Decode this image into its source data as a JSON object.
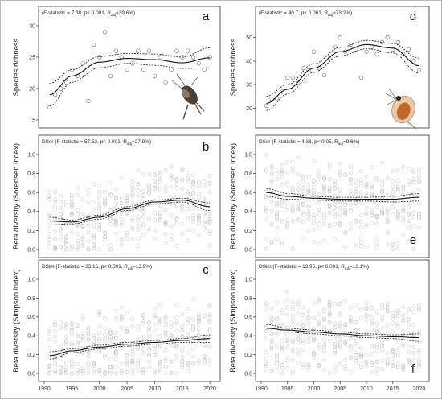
{
  "chart_data": [
    {
      "id": "a",
      "type": "scatter",
      "panel_letter": "a",
      "ylabel": "Species richness",
      "annotation": "(F-statistic = 7.38, p< 0.001, R",
      "annotation_sub": "adj",
      "annotation_tail": "=39.6%)",
      "ylim": [
        15,
        30
      ],
      "yticks": [
        15,
        20,
        25,
        30
      ],
      "xlim": [
        1990,
        2021
      ],
      "xticks": [],
      "icon": "copepod-icon",
      "fit": {
        "x": [
          1991,
          1995,
          2000,
          2005,
          2010,
          2015,
          2020
        ],
        "y": [
          19.0,
          22.0,
          24.2,
          24.8,
          24.6,
          24.1,
          24.9
        ],
        "ci": [
          1.8,
          1.0,
          0.9,
          0.8,
          0.9,
          0.9,
          1.6
        ]
      },
      "points": [
        [
          1991,
          17
        ],
        [
          1992,
          19
        ],
        [
          1993,
          20
        ],
        [
          1994,
          21
        ],
        [
          1995,
          23
        ],
        [
          1996,
          22
        ],
        [
          1997,
          24
        ],
        [
          1998,
          18
        ],
        [
          1999,
          27
        ],
        [
          2000,
          25
        ],
        [
          2001,
          29
        ],
        [
          2002,
          22
        ],
        [
          2003,
          26
        ],
        [
          2004,
          25
        ],
        [
          2005,
          23
        ],
        [
          2006,
          24
        ],
        [
          2007,
          26
        ],
        [
          2008,
          23
        ],
        [
          2009,
          26
        ],
        [
          2010,
          22
        ],
        [
          2011,
          25
        ],
        [
          2012,
          21
        ],
        [
          2013,
          23
        ],
        [
          2014,
          26
        ],
        [
          2015,
          25
        ],
        [
          2016,
          26
        ],
        [
          2017,
          25
        ],
        [
          2018,
          24
        ],
        [
          2019,
          23
        ],
        [
          2020,
          25
        ]
      ]
    },
    {
      "id": "d",
      "type": "scatter",
      "panel_letter": "d",
      "ylabel": "Species richness",
      "annotation": "(F-statistic = 40.7, p< 0.001, R",
      "annotation_sub": "adj",
      "annotation_tail": "=73.2%)",
      "ylim": [
        15,
        55
      ],
      "yticks": [
        20,
        30,
        40,
        50
      ],
      "xlim": [
        1990,
        2021
      ],
      "xticks": [],
      "icon": "daphnia-icon",
      "fit": {
        "x": [
          1991,
          1995,
          2000,
          2005,
          2010,
          2015,
          2020
        ],
        "y": [
          22.0,
          28.0,
          37.0,
          44.0,
          47.0,
          45.5,
          38.0
        ],
        "ci": [
          3.0,
          2.0,
          1.8,
          1.8,
          1.8,
          2.0,
          3.2
        ]
      },
      "points": [
        [
          1991,
          21
        ],
        [
          1992,
          24
        ],
        [
          1993,
          24
        ],
        [
          1994,
          27
        ],
        [
          1995,
          33
        ],
        [
          1996,
          33
        ],
        [
          1997,
          31
        ],
        [
          1998,
          37
        ],
        [
          1999,
          36
        ],
        [
          2000,
          44
        ],
        [
          2001,
          37
        ],
        [
          2002,
          34
        ],
        [
          2003,
          41
        ],
        [
          2004,
          46
        ],
        [
          2005,
          50
        ],
        [
          2006,
          44
        ],
        [
          2007,
          47
        ],
        [
          2008,
          45
        ],
        [
          2009,
          33
        ],
        [
          2010,
          44
        ],
        [
          2011,
          46
        ],
        [
          2012,
          43
        ],
        [
          2013,
          48
        ],
        [
          2014,
          50
        ],
        [
          2015,
          45
        ],
        [
          2016,
          48
        ],
        [
          2017,
          43
        ],
        [
          2018,
          45
        ],
        [
          2019,
          40
        ],
        [
          2020,
          36
        ]
      ]
    },
    {
      "id": "b",
      "type": "scatter",
      "panel_letter": "b",
      "ylabel": "Beta diversity (Sorensen index)",
      "annotation": "DSor (F-statistic = 57.52, p< 0.001, R",
      "annotation_sub": "adj",
      "annotation_tail": "=27.9%)",
      "ylim": [
        0,
        1
      ],
      "yticks": [
        0.0,
        0.2,
        0.4,
        0.6,
        0.8,
        1.0
      ],
      "xlim": [
        1990,
        2021
      ],
      "xticks": [],
      "fit": {
        "x": [
          1991,
          1995,
          2000,
          2005,
          2010,
          2015,
          2020
        ],
        "y": [
          0.3,
          0.29,
          0.34,
          0.43,
          0.5,
          0.52,
          0.45
        ],
        "ci": [
          0.04,
          0.02,
          0.02,
          0.02,
          0.02,
          0.02,
          0.04
        ]
      }
    },
    {
      "id": "e",
      "type": "scatter",
      "panel_letter": "e",
      "ylabel": "Beta diversity (Sorensen index)",
      "annotation": "DSor (F-statistic = 4.38, p< 0.05, R",
      "annotation_sub": "adj",
      "annotation_tail": "=9.6%)",
      "ylim": [
        0,
        1
      ],
      "yticks": [
        0.0,
        0.2,
        0.4,
        0.6,
        0.8,
        1.0
      ],
      "xlim": [
        1990,
        2021
      ],
      "xticks": [],
      "fit": {
        "x": [
          1991,
          1995,
          2000,
          2005,
          2010,
          2015,
          2020
        ],
        "y": [
          0.6,
          0.56,
          0.54,
          0.53,
          0.53,
          0.53,
          0.55
        ],
        "ci": [
          0.04,
          0.03,
          0.02,
          0.02,
          0.02,
          0.03,
          0.04
        ]
      }
    },
    {
      "id": "c",
      "type": "scatter",
      "panel_letter": "c",
      "ylabel": "Beta diversity (Simpson index)",
      "annotation": "DSim (F-statistic = 33.16, p< 0.001, R",
      "annotation_sub": "adj",
      "annotation_tail": "=13.9%)",
      "ylim": [
        0,
        1
      ],
      "yticks": [
        0.0,
        0.2,
        0.4,
        0.6,
        0.8,
        1.0
      ],
      "xlim": [
        1990,
        2021
      ],
      "xticks": [
        1990,
        1995,
        2000,
        2005,
        2010,
        2015,
        2020
      ],
      "fit": {
        "x": [
          1991,
          1995,
          2000,
          2005,
          2010,
          2015,
          2020
        ],
        "y": [
          0.19,
          0.24,
          0.28,
          0.31,
          0.33,
          0.35,
          0.37
        ],
        "ci": [
          0.04,
          0.02,
          0.02,
          0.02,
          0.02,
          0.02,
          0.04
        ]
      }
    },
    {
      "id": "f",
      "type": "scatter",
      "panel_letter": "f",
      "ylabel": "Beta diversity (Simpson index)",
      "annotation": "DSim (F-statistic = 13.95, p< 0.001, R",
      "annotation_sub": "adj",
      "annotation_tail": "=13.1%)",
      "ylim": [
        0,
        1
      ],
      "yticks": [
        0.0,
        0.2,
        0.4,
        0.6,
        0.8,
        1.0
      ],
      "xlim": [
        1990,
        2021
      ],
      "xticks": [
        1990,
        1995,
        2000,
        2005,
        2010,
        2015,
        2020
      ],
      "fit": {
        "x": [
          1991,
          1995,
          2000,
          2005,
          2010,
          2015,
          2020
        ],
        "y": [
          0.48,
          0.46,
          0.44,
          0.42,
          0.4,
          0.39,
          0.38
        ],
        "ci": [
          0.04,
          0.02,
          0.02,
          0.02,
          0.02,
          0.02,
          0.04
        ]
      }
    }
  ],
  "style": {
    "point_color": "#c4c4c4",
    "rich_point_color": "#555555",
    "line_color": "#111111"
  }
}
